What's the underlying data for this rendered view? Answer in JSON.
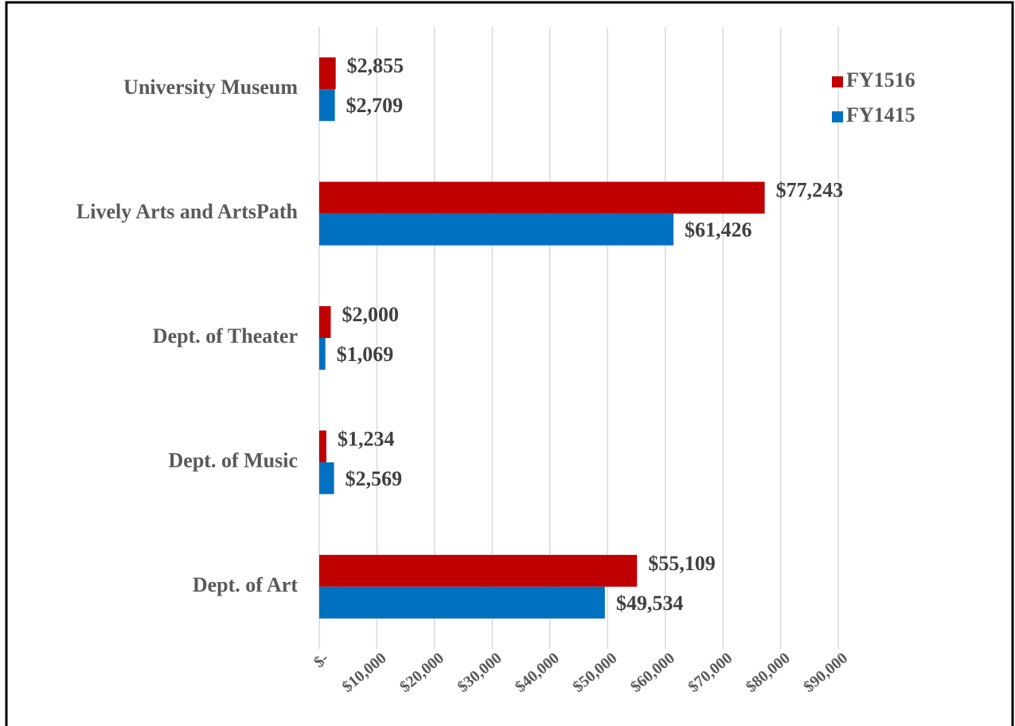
{
  "chart_data": {
    "type": "barh",
    "categories": [
      "University Museum",
      "Lively Arts and ArtsPath",
      "Dept. of Theater",
      "Dept. of Music",
      "Dept. of Art"
    ],
    "series": [
      {
        "name": "FY1516",
        "color": "#c00000",
        "values": [
          2855,
          77243,
          2000,
          1234,
          55109
        ],
        "value_labels": [
          "$2,855",
          "$77,243",
          "$2,000",
          "$1,234",
          "$55,109"
        ]
      },
      {
        "name": "FY1415",
        "color": "#0070c0",
        "values": [
          2709,
          61426,
          1069,
          2569,
          49534
        ],
        "value_labels": [
          "$2,709",
          "$61,426",
          "$1,069",
          "$2,569",
          "$49,534"
        ]
      }
    ],
    "xlim": [
      0,
      90000
    ],
    "xticks": [
      {
        "value": 0,
        "label": "$-"
      },
      {
        "value": 10000,
        "label": "$10,000"
      },
      {
        "value": 20000,
        "label": "$20,000"
      },
      {
        "value": 30000,
        "label": "$30,000"
      },
      {
        "value": 40000,
        "label": "$40,000"
      },
      {
        "value": 50000,
        "label": "$50,000"
      },
      {
        "value": 60000,
        "label": "$60,000"
      },
      {
        "value": 70000,
        "label": "$70,000"
      },
      {
        "value": 80000,
        "label": "$80,000"
      },
      {
        "value": 90000,
        "label": "$90,000"
      }
    ],
    "grid": true,
    "legend": "top-right"
  }
}
